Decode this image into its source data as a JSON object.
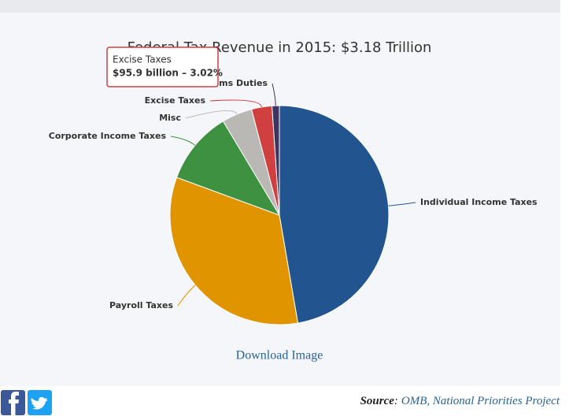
{
  "chart_data": {
    "type": "pie",
    "title": "Federal Tax Revenue in 2015: $3.18 Trillion",
    "categories": [
      "Individual Income Taxes",
      "Payroll Taxes",
      "Corporate Income Taxes",
      "Misc",
      "Excise Taxes",
      "Customs Duties"
    ],
    "values": [
      47.3,
      33.3,
      10.8,
      4.5,
      3.02,
      1.08
    ],
    "colors": [
      "#22558f",
      "#e09500",
      "#3f9142",
      "#b9b8b4",
      "#d04040",
      "#3d3560"
    ],
    "tooltip": {
      "title": "Excise Taxes",
      "text": "$95.9 billion – 3.02%"
    }
  },
  "download": "Download Image",
  "source": {
    "label": "Source",
    "separator": ":",
    "text": "OMB, National Priorities Project"
  }
}
